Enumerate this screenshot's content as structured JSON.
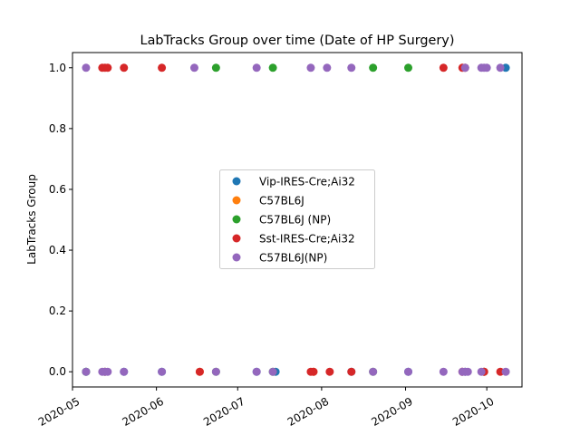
{
  "chart_data": {
    "type": "scatter",
    "title": "LabTracks Group over time (Date of HP Surgery)",
    "xlabel": "",
    "ylabel": "LabTracks Group",
    "x_type": "date",
    "xlim": [
      "2020-05-01",
      "2020-10-14"
    ],
    "ylim": [
      -0.05,
      1.05
    ],
    "x_ticks": [
      "2020-05",
      "2020-06",
      "2020-07",
      "2020-08",
      "2020-09",
      "2020-10"
    ],
    "y_ticks": [
      "0.0",
      "0.2",
      "0.4",
      "0.6",
      "0.8",
      "1.0"
    ],
    "grid": false,
    "legend_position": "center",
    "series": [
      {
        "name": "Vip-IRES-Cre;Ai32",
        "color": "#1f77b4",
        "points": [
          [
            "2020-05-06",
            0
          ],
          [
            "2020-05-13",
            0
          ],
          [
            "2020-05-20",
            0
          ],
          [
            "2020-06-03",
            0
          ],
          [
            "2020-07-08",
            0
          ],
          [
            "2020-07-15",
            0
          ],
          [
            "2020-08-12",
            0
          ],
          [
            "2020-09-02",
            0
          ],
          [
            "2020-09-23",
            0
          ],
          [
            "2020-09-30",
            0
          ],
          [
            "2020-10-08",
            1
          ]
        ]
      },
      {
        "name": "C57BL6J",
        "color": "#ff7f0e",
        "points": [
          [
            "2020-05-13",
            0
          ],
          [
            "2020-06-17",
            0
          ],
          [
            "2020-07-29",
            0
          ],
          [
            "2020-09-30",
            0
          ]
        ]
      },
      {
        "name": "C57BL6J (NP)",
        "color": "#2ca02c",
        "points": [
          [
            "2020-06-23",
            1
          ],
          [
            "2020-07-14",
            1
          ],
          [
            "2020-08-20",
            1
          ],
          [
            "2020-09-02",
            1
          ],
          [
            "2020-05-06",
            0
          ],
          [
            "2020-06-23",
            0
          ],
          [
            "2020-07-14",
            0
          ],
          [
            "2020-08-20",
            0
          ]
        ]
      },
      {
        "name": "Sst-IRES-Cre;Ai32",
        "color": "#d62728",
        "points": [
          [
            "2020-05-12",
            1
          ],
          [
            "2020-05-13",
            1
          ],
          [
            "2020-05-14",
            1
          ],
          [
            "2020-05-20",
            1
          ],
          [
            "2020-06-03",
            1
          ],
          [
            "2020-09-15",
            1
          ],
          [
            "2020-09-22",
            1
          ],
          [
            "2020-09-23",
            1
          ],
          [
            "2020-06-17",
            0
          ],
          [
            "2020-07-28",
            0
          ],
          [
            "2020-07-29",
            0
          ],
          [
            "2020-08-04",
            0
          ],
          [
            "2020-08-12",
            0
          ],
          [
            "2020-09-22",
            0
          ],
          [
            "2020-09-30",
            0
          ],
          [
            "2020-10-06",
            0
          ]
        ]
      },
      {
        "name": "C57BL6J(NP)",
        "color": "#9467bd",
        "points": [
          [
            "2020-05-06",
            1
          ],
          [
            "2020-06-15",
            1
          ],
          [
            "2020-07-08",
            1
          ],
          [
            "2020-07-28",
            1
          ],
          [
            "2020-08-03",
            1
          ],
          [
            "2020-08-12",
            1
          ],
          [
            "2020-09-23",
            1
          ],
          [
            "2020-09-29",
            1
          ],
          [
            "2020-09-30",
            1
          ],
          [
            "2020-10-01",
            1
          ],
          [
            "2020-10-06",
            1
          ],
          [
            "2020-05-06",
            0
          ],
          [
            "2020-05-12",
            0
          ],
          [
            "2020-05-13",
            0
          ],
          [
            "2020-05-14",
            0
          ],
          [
            "2020-05-20",
            0
          ],
          [
            "2020-06-03",
            0
          ],
          [
            "2020-06-23",
            0
          ],
          [
            "2020-07-08",
            0
          ],
          [
            "2020-07-14",
            0
          ],
          [
            "2020-08-20",
            0
          ],
          [
            "2020-09-02",
            0
          ],
          [
            "2020-09-15",
            0
          ],
          [
            "2020-09-22",
            0
          ],
          [
            "2020-09-23",
            0
          ],
          [
            "2020-09-24",
            0
          ],
          [
            "2020-09-29",
            0
          ],
          [
            "2020-10-08",
            0
          ]
        ]
      }
    ]
  }
}
